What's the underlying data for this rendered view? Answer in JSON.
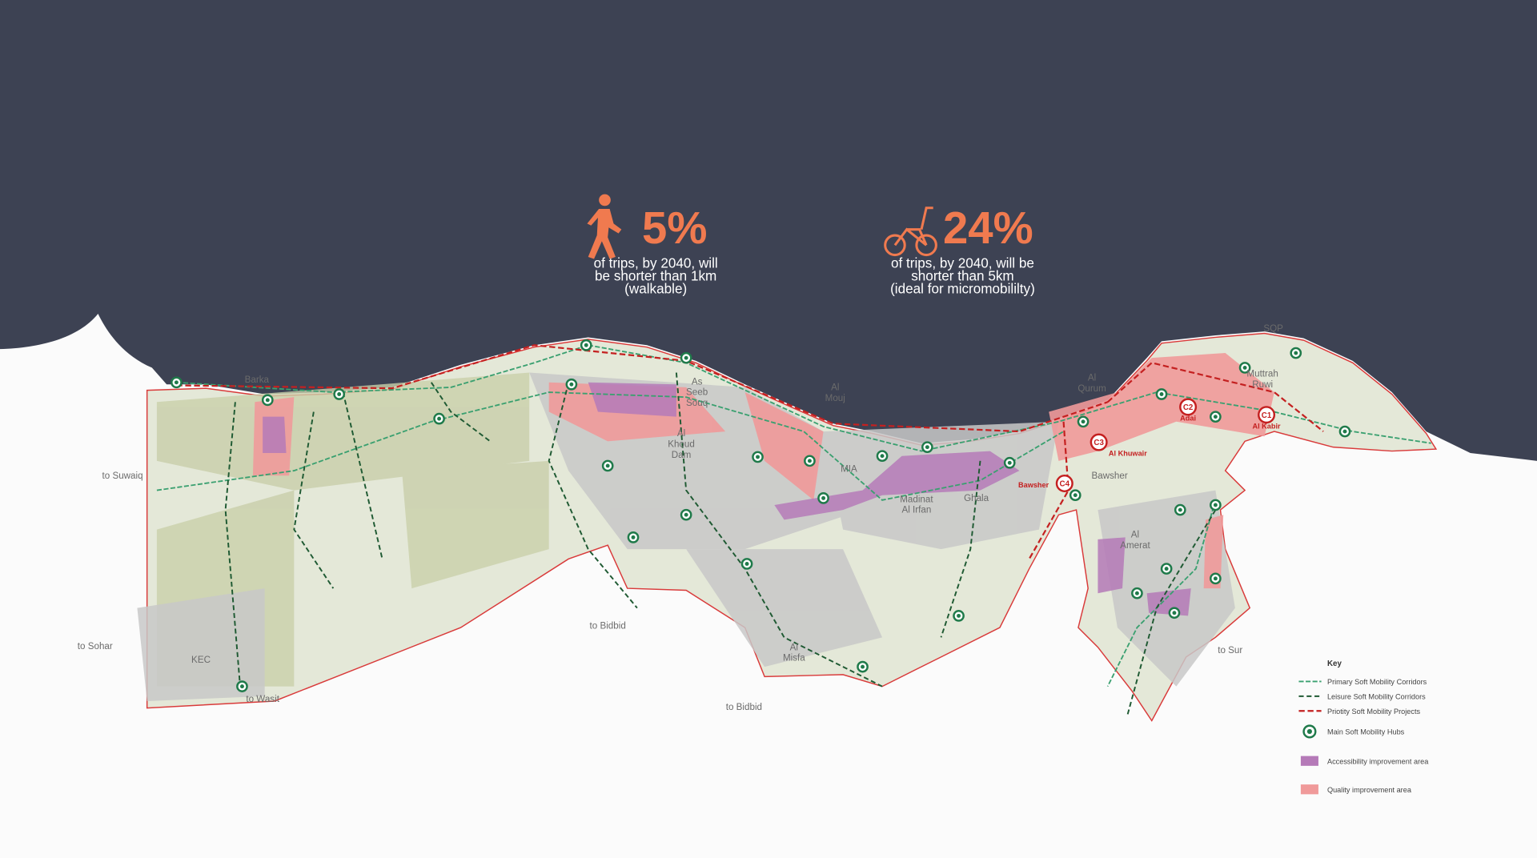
{
  "stats": [
    {
      "value": "5%",
      "caption": [
        "of trips, by 2040, will",
        "be shorter than 1km",
        "(walkable)"
      ]
    },
    {
      "value": "24%",
      "caption": [
        "of trips, by 2040, will be",
        "shorter than 5km",
        "(ideal for micromobililty)"
      ]
    }
  ],
  "places": [
    {
      "lines": [
        "Barka"
      ]
    },
    {
      "lines": [
        "As",
        "Seeb",
        "Souq"
      ]
    },
    {
      "lines": [
        "Al",
        "Khoud",
        "Dam"
      ]
    },
    {
      "lines": [
        "Al",
        "Mouj"
      ]
    },
    {
      "lines": [
        "MIA"
      ]
    },
    {
      "lines": [
        "Al",
        "Qurum"
      ]
    },
    {
      "lines": [
        "Bawsher"
      ]
    },
    {
      "lines": [
        "Madinat",
        "Al Irfan"
      ]
    },
    {
      "lines": [
        "Ghala"
      ]
    },
    {
      "lines": [
        "Al",
        "Amerat"
      ]
    },
    {
      "lines": [
        "Al",
        "Misfa"
      ]
    },
    {
      "lines": [
        "KEC"
      ]
    },
    {
      "lines": [
        "SQP"
      ]
    },
    {
      "lines": [
        "Muttrah",
        "Ruwi"
      ]
    },
    {
      "lines": [
        "to Suwaiq"
      ]
    },
    {
      "lines": [
        "to Sohar"
      ]
    },
    {
      "lines": [
        "to Wasit"
      ]
    },
    {
      "lines": [
        "to Bidbid"
      ]
    },
    {
      "lines": [
        "to Bidbid"
      ]
    },
    {
      "lines": [
        "to Sur"
      ]
    }
  ],
  "projects": [
    {
      "code": "C1",
      "name": "Al Kabir"
    },
    {
      "code": "C2",
      "name": "Adai"
    },
    {
      "code": "C3",
      "name": "Al Khuwair"
    },
    {
      "code": "C4",
      "name": "Bawsher"
    }
  ],
  "legend": {
    "title": "Key",
    "items": [
      "Primary Soft Mobility Corridors",
      "Leisure Soft Mobility Corridors",
      "Priotity Soft Mobility Projects",
      "Main Soft Mobility Hubs",
      "Accessibility improvement area",
      "Quality improvement area"
    ]
  }
}
